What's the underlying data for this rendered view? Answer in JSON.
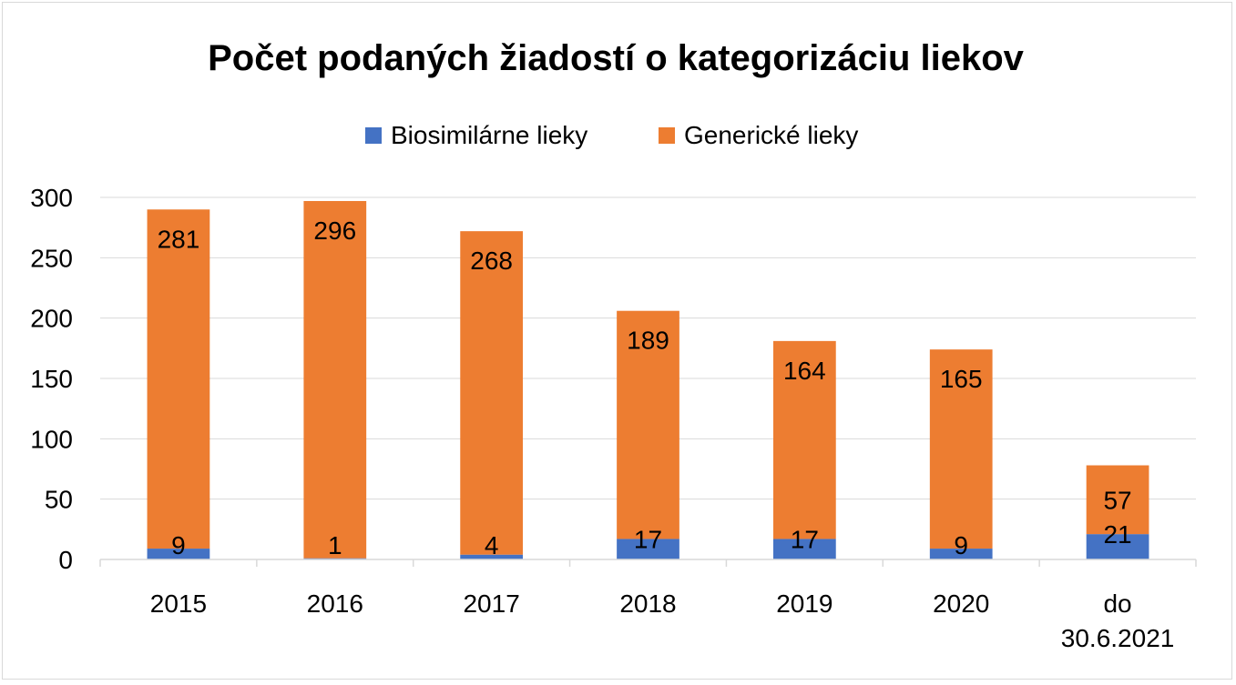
{
  "chart_data": {
    "type": "bar",
    "stacked": true,
    "title": "Počet podaných žiadostí o kategorizáciu liekov",
    "xlabel": "",
    "ylabel": "",
    "categories": [
      [
        "2015"
      ],
      [
        "2016"
      ],
      [
        "2017"
      ],
      [
        "2018"
      ],
      [
        "2019"
      ],
      [
        "2020"
      ],
      [
        "do",
        "30.6.2021"
      ]
    ],
    "series": [
      {
        "name": "Biosimilárne lieky",
        "color": "#4472c4",
        "values": [
          9,
          1,
          4,
          17,
          17,
          9,
          21
        ]
      },
      {
        "name": "Generické lieky",
        "color": "#ed7d31",
        "values": [
          281,
          296,
          268,
          189,
          164,
          165,
          57
        ]
      }
    ],
    "ylim": [
      0,
      300
    ],
    "yticks": [
      0,
      50,
      100,
      150,
      200,
      250,
      300
    ],
    "grid": true,
    "legend_position": "top"
  }
}
